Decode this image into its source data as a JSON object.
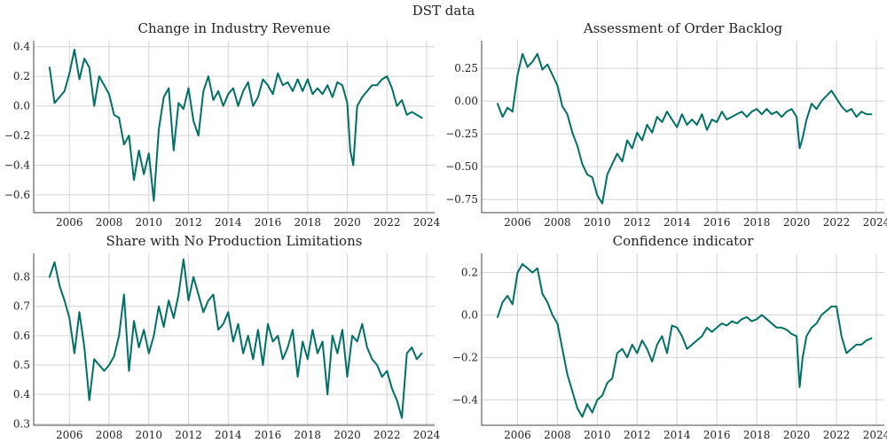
{
  "figure": {
    "title": "DST data",
    "line_color": "#007066"
  },
  "chart_data": [
    {
      "type": "line",
      "title": "Change in Industry Revenue",
      "xlabel": "",
      "ylabel": "",
      "xlim": [
        2004.2,
        2024.4
      ],
      "ylim": [
        -0.72,
        0.44
      ],
      "xticks": [
        2006,
        2008,
        2010,
        2012,
        2014,
        2016,
        2018,
        2020,
        2022,
        2024
      ],
      "yticks": [
        -0.6,
        -0.4,
        -0.2,
        0.0,
        0.2,
        0.4
      ],
      "ytick_labels": [
        "−0.6",
        "−0.4",
        "−0.2",
        "0.0",
        "0.2",
        "0.4"
      ],
      "grid": true,
      "series": [
        {
          "x": [
            2005.0,
            2005.25,
            2005.5,
            2005.75,
            2006.0,
            2006.25,
            2006.5,
            2006.75,
            2007.0,
            2007.25,
            2007.5,
            2007.75,
            2008.0,
            2008.25,
            2008.5,
            2008.75,
            2009.0,
            2009.25,
            2009.5,
            2009.75,
            2010.0,
            2010.25,
            2010.5,
            2010.75,
            2011.0,
            2011.25,
            2011.5,
            2011.75,
            2012.0,
            2012.25,
            2012.5,
            2012.75,
            2013.0,
            2013.25,
            2013.5,
            2013.75,
            2014.0,
            2014.25,
            2014.5,
            2014.75,
            2015.0,
            2015.25,
            2015.5,
            2015.75,
            2016.0,
            2016.25,
            2016.5,
            2016.75,
            2017.0,
            2017.25,
            2017.5,
            2017.75,
            2018.0,
            2018.25,
            2018.5,
            2018.75,
            2019.0,
            2019.25,
            2019.5,
            2019.75,
            2020.0,
            2020.15,
            2020.3,
            2020.5,
            2020.75,
            2021.0,
            2021.25,
            2021.5,
            2021.75,
            2022.0,
            2022.25,
            2022.5,
            2022.75,
            2023.0,
            2023.25,
            2023.5,
            2023.75
          ],
          "y": [
            0.26,
            0.02,
            0.06,
            0.1,
            0.22,
            0.38,
            0.18,
            0.32,
            0.26,
            0.0,
            0.2,
            0.14,
            0.08,
            -0.06,
            -0.08,
            -0.26,
            -0.2,
            -0.5,
            -0.3,
            -0.46,
            -0.32,
            -0.64,
            -0.16,
            0.06,
            0.12,
            -0.3,
            0.02,
            -0.02,
            0.12,
            -0.1,
            -0.2,
            0.1,
            0.2,
            0.04,
            0.1,
            0.0,
            0.08,
            0.12,
            0.0,
            0.1,
            0.16,
            0.0,
            0.06,
            0.18,
            0.14,
            0.08,
            0.22,
            0.14,
            0.16,
            0.1,
            0.18,
            0.1,
            0.18,
            0.08,
            0.12,
            0.08,
            0.14,
            0.06,
            0.16,
            0.14,
            0.02,
            -0.3,
            -0.4,
            0.0,
            0.06,
            0.1,
            0.14,
            0.14,
            0.18,
            0.2,
            0.12,
            0.0,
            0.04,
            -0.06,
            -0.04,
            -0.06,
            -0.08
          ]
        }
      ]
    },
    {
      "type": "line",
      "title": "Assessment of Order Backlog",
      "xlabel": "",
      "ylabel": "",
      "xlim": [
        2004.2,
        2024.4
      ],
      "ylim": [
        -0.85,
        0.46
      ],
      "xticks": [
        2006,
        2008,
        2010,
        2012,
        2014,
        2016,
        2018,
        2020,
        2022,
        2024
      ],
      "yticks": [
        -0.75,
        -0.5,
        -0.25,
        0.0,
        0.25
      ],
      "ytick_labels": [
        "−0.75",
        "−0.50",
        "−0.25",
        "0.00",
        "0.25"
      ],
      "grid": true,
      "series": [
        {
          "x": [
            2005.0,
            2005.25,
            2005.5,
            2005.75,
            2006.0,
            2006.25,
            2006.5,
            2006.75,
            2007.0,
            2007.25,
            2007.5,
            2007.75,
            2008.0,
            2008.25,
            2008.5,
            2008.75,
            2009.0,
            2009.25,
            2009.5,
            2009.75,
            2010.0,
            2010.25,
            2010.5,
            2010.75,
            2011.0,
            2011.25,
            2011.5,
            2011.75,
            2012.0,
            2012.25,
            2012.5,
            2012.75,
            2013.0,
            2013.25,
            2013.5,
            2013.75,
            2014.0,
            2014.25,
            2014.5,
            2014.75,
            2015.0,
            2015.25,
            2015.5,
            2015.75,
            2016.0,
            2016.25,
            2016.5,
            2016.75,
            2017.0,
            2017.25,
            2017.5,
            2017.75,
            2018.0,
            2018.25,
            2018.5,
            2018.75,
            2019.0,
            2019.25,
            2019.5,
            2019.75,
            2020.0,
            2020.15,
            2020.3,
            2020.5,
            2020.75,
            2021.0,
            2021.25,
            2021.5,
            2021.75,
            2022.0,
            2022.25,
            2022.5,
            2022.75,
            2023.0,
            2023.25,
            2023.5,
            2023.75
          ],
          "y": [
            -0.02,
            -0.12,
            -0.05,
            -0.08,
            0.2,
            0.36,
            0.26,
            0.3,
            0.36,
            0.24,
            0.28,
            0.2,
            0.12,
            -0.04,
            -0.1,
            -0.24,
            -0.34,
            -0.48,
            -0.56,
            -0.58,
            -0.72,
            -0.78,
            -0.56,
            -0.48,
            -0.4,
            -0.46,
            -0.3,
            -0.36,
            -0.24,
            -0.3,
            -0.18,
            -0.24,
            -0.12,
            -0.16,
            -0.08,
            -0.14,
            -0.2,
            -0.1,
            -0.18,
            -0.14,
            -0.18,
            -0.1,
            -0.22,
            -0.14,
            -0.16,
            -0.08,
            -0.14,
            -0.12,
            -0.1,
            -0.08,
            -0.12,
            -0.08,
            -0.06,
            -0.1,
            -0.06,
            -0.1,
            -0.08,
            -0.12,
            -0.08,
            -0.06,
            -0.12,
            -0.36,
            -0.28,
            -0.14,
            -0.02,
            -0.06,
            0.0,
            0.04,
            0.08,
            0.02,
            -0.04,
            -0.08,
            -0.06,
            -0.12,
            -0.08,
            -0.1,
            -0.1
          ]
        }
      ]
    },
    {
      "type": "line",
      "title": "Share with No Production Limitations",
      "xlabel": "",
      "ylabel": "",
      "xlim": [
        2004.2,
        2024.4
      ],
      "ylim": [
        0.295,
        0.88
      ],
      "xticks": [
        2006,
        2008,
        2010,
        2012,
        2014,
        2016,
        2018,
        2020,
        2022,
        2024
      ],
      "yticks": [
        0.3,
        0.4,
        0.5,
        0.6,
        0.7,
        0.8
      ],
      "ytick_labels": [
        "0.3",
        "0.4",
        "0.5",
        "0.6",
        "0.7",
        "0.8"
      ],
      "grid": true,
      "series": [
        {
          "x": [
            2005.0,
            2005.25,
            2005.5,
            2005.75,
            2006.0,
            2006.25,
            2006.5,
            2006.75,
            2007.0,
            2007.25,
            2007.5,
            2007.75,
            2008.0,
            2008.25,
            2008.5,
            2008.75,
            2009.0,
            2009.25,
            2009.5,
            2009.75,
            2010.0,
            2010.25,
            2010.5,
            2010.75,
            2011.0,
            2011.25,
            2011.5,
            2011.75,
            2012.0,
            2012.25,
            2012.5,
            2012.75,
            2013.0,
            2013.25,
            2013.5,
            2013.75,
            2014.0,
            2014.25,
            2014.5,
            2014.75,
            2015.0,
            2015.25,
            2015.5,
            2015.75,
            2016.0,
            2016.25,
            2016.5,
            2016.75,
            2017.0,
            2017.25,
            2017.5,
            2017.75,
            2018.0,
            2018.25,
            2018.5,
            2018.75,
            2019.0,
            2019.25,
            2019.5,
            2019.75,
            2020.0,
            2020.25,
            2020.5,
            2020.75,
            2021.0,
            2021.25,
            2021.5,
            2021.75,
            2022.0,
            2022.25,
            2022.5,
            2022.75,
            2023.0,
            2023.25,
            2023.5,
            2023.75
          ],
          "y": [
            0.8,
            0.85,
            0.77,
            0.72,
            0.66,
            0.54,
            0.68,
            0.56,
            0.38,
            0.52,
            0.5,
            0.48,
            0.5,
            0.53,
            0.6,
            0.74,
            0.48,
            0.65,
            0.56,
            0.62,
            0.54,
            0.6,
            0.7,
            0.63,
            0.72,
            0.66,
            0.74,
            0.86,
            0.72,
            0.8,
            0.74,
            0.68,
            0.72,
            0.74,
            0.62,
            0.64,
            0.68,
            0.58,
            0.64,
            0.54,
            0.6,
            0.52,
            0.62,
            0.5,
            0.64,
            0.58,
            0.6,
            0.52,
            0.56,
            0.62,
            0.46,
            0.58,
            0.52,
            0.62,
            0.54,
            0.58,
            0.4,
            0.6,
            0.54,
            0.62,
            0.46,
            0.6,
            0.58,
            0.64,
            0.56,
            0.52,
            0.5,
            0.46,
            0.48,
            0.42,
            0.38,
            0.32,
            0.54,
            0.56,
            0.52,
            0.54
          ]
        }
      ]
    },
    {
      "type": "line",
      "title": "Confidence indicator",
      "xlabel": "",
      "ylabel": "",
      "xlim": [
        2004.2,
        2024.4
      ],
      "ylim": [
        -0.52,
        0.29
      ],
      "xticks": [
        2006,
        2008,
        2010,
        2012,
        2014,
        2016,
        2018,
        2020,
        2022,
        2024
      ],
      "yticks": [
        -0.4,
        -0.2,
        0.0,
        0.2
      ],
      "ytick_labels": [
        "−0.4",
        "−0.2",
        "0.0",
        "0.2"
      ],
      "grid": true,
      "series": [
        {
          "x": [
            2005.0,
            2005.25,
            2005.5,
            2005.75,
            2006.0,
            2006.25,
            2006.5,
            2006.75,
            2007.0,
            2007.25,
            2007.5,
            2007.75,
            2008.0,
            2008.25,
            2008.5,
            2008.75,
            2009.0,
            2009.25,
            2009.5,
            2009.75,
            2010.0,
            2010.25,
            2010.5,
            2010.75,
            2011.0,
            2011.25,
            2011.5,
            2011.75,
            2012.0,
            2012.25,
            2012.5,
            2012.75,
            2013.0,
            2013.25,
            2013.5,
            2013.75,
            2014.0,
            2014.25,
            2014.5,
            2014.75,
            2015.0,
            2015.25,
            2015.5,
            2015.75,
            2016.0,
            2016.25,
            2016.5,
            2016.75,
            2017.0,
            2017.25,
            2017.5,
            2017.75,
            2018.0,
            2018.25,
            2018.5,
            2018.75,
            2019.0,
            2019.25,
            2019.5,
            2019.75,
            2020.0,
            2020.15,
            2020.3,
            2020.5,
            2020.75,
            2021.0,
            2021.25,
            2021.5,
            2021.75,
            2022.0,
            2022.25,
            2022.5,
            2022.75,
            2023.0,
            2023.25,
            2023.5,
            2023.75
          ],
          "y": [
            -0.01,
            0.06,
            0.09,
            0.05,
            0.2,
            0.24,
            0.22,
            0.2,
            0.22,
            0.1,
            0.06,
            0.0,
            -0.04,
            -0.16,
            -0.28,
            -0.36,
            -0.44,
            -0.48,
            -0.42,
            -0.46,
            -0.4,
            -0.38,
            -0.32,
            -0.3,
            -0.18,
            -0.16,
            -0.2,
            -0.14,
            -0.18,
            -0.12,
            -0.16,
            -0.22,
            -0.14,
            -0.1,
            -0.18,
            -0.05,
            -0.06,
            -0.1,
            -0.16,
            -0.14,
            -0.12,
            -0.1,
            -0.06,
            -0.08,
            -0.06,
            -0.04,
            -0.05,
            -0.03,
            -0.04,
            -0.02,
            -0.01,
            -0.03,
            -0.02,
            0.0,
            -0.02,
            -0.04,
            -0.06,
            -0.06,
            -0.07,
            -0.09,
            -0.1,
            -0.34,
            -0.2,
            -0.1,
            -0.06,
            -0.04,
            0.0,
            0.02,
            0.04,
            0.04,
            -0.1,
            -0.18,
            -0.16,
            -0.14,
            -0.14,
            -0.12,
            -0.11
          ]
        }
      ]
    }
  ]
}
